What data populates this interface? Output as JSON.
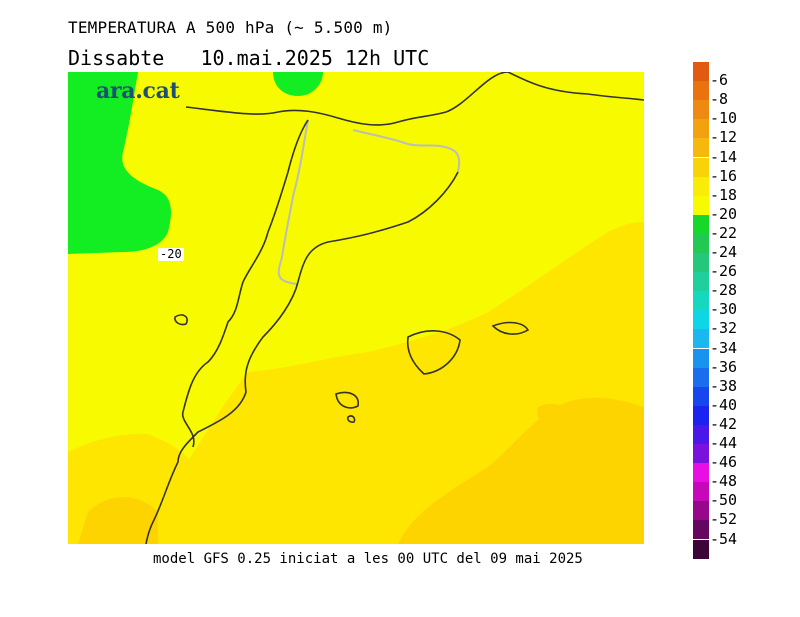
{
  "header": {
    "title_line1": "TEMPERATURA A 500 hPa (~ 5.500 m)",
    "title_line2": "Dissabte   10.mai.2025 12h UTC"
  },
  "map": {
    "brand": "ara.cat",
    "contour_label": "-20"
  },
  "footer": {
    "model_text": "model GFS 0.25 iniciat a les 00 UTC del 09 mai 2025"
  },
  "legend": {
    "labels": [
      "-6",
      "-8",
      "-10",
      "-12",
      "-14",
      "-16",
      "-18",
      "-20",
      "-22",
      "-24",
      "-26",
      "-28",
      "-30",
      "-32",
      "-34",
      "-36",
      "-38",
      "-40",
      "-42",
      "-44",
      "-46",
      "-48",
      "-50",
      "-52",
      "-54"
    ],
    "colors": [
      "#e05a0f",
      "#e9740f",
      "#ee8a10",
      "#f2a20f",
      "#f6b80c",
      "#f9d30a",
      "#f9ec06",
      "#f7fb02",
      "#17d728",
      "#21c854",
      "#25c77a",
      "#1fcf9c",
      "#14d8c0",
      "#0fd6e4",
      "#1bb7ef",
      "#1994ee",
      "#1a6ded",
      "#1846ee",
      "#1a24ee",
      "#4a18e8",
      "#7a12dd",
      "#e80ee4",
      "#c708b8",
      "#96078a",
      "#650760",
      "#3c0438"
    ],
    "map_colors": {
      "green": "#12ee22",
      "yellow": "#f8fb00",
      "light_orange": "#ffe600",
      "orange": "#fed400",
      "coast": "#333333",
      "border": "#bcbcbc"
    }
  }
}
